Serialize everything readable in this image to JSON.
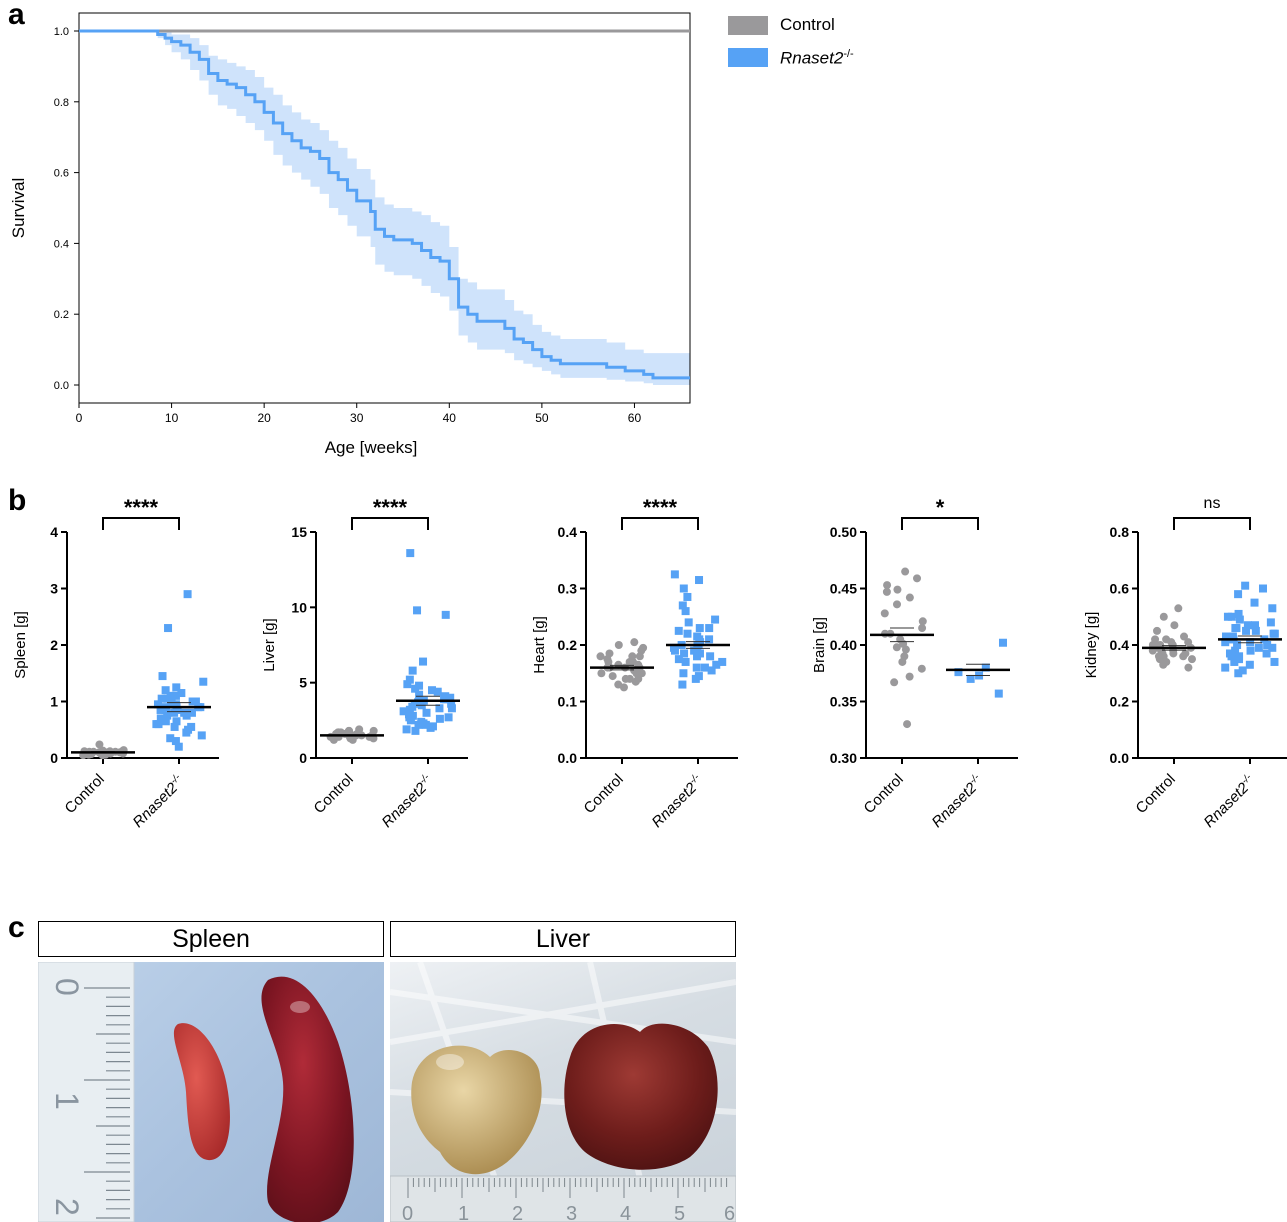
{
  "panels": {
    "a": "a",
    "b": "b",
    "c": "c"
  },
  "legend": [
    {
      "label": "Control",
      "color": "#9a999b"
    },
    {
      "label": "Rnaset2",
      "sup": "-/-",
      "color": "#56a2f5"
    }
  ],
  "colors": {
    "control": "#9a999b",
    "ko": "#56a2f5",
    "ko_band": "#cfe3fb"
  },
  "chart_data": [
    {
      "type": "line",
      "subtype": "kaplan-meier",
      "xlabel": "Age [weeks]",
      "ylabel": "Survival",
      "xlim": [
        0,
        66
      ],
      "ylim": [
        0,
        1
      ],
      "xticks": [
        "0",
        "10",
        "20",
        "30",
        "40",
        "50",
        "60"
      ],
      "yticks": [
        "0.0",
        "0.2",
        "0.4",
        "0.6",
        "0.8",
        "1.0"
      ],
      "series": [
        {
          "name": "Control",
          "x": [
            0,
            66
          ],
          "y": [
            1.0,
            1.0
          ]
        },
        {
          "name": "Rnaset2-/-",
          "x": [
            0,
            8.5,
            9.3,
            10,
            11,
            12,
            13,
            14,
            15,
            16,
            17,
            18,
            19,
            20,
            21,
            22,
            23,
            24,
            25,
            26,
            27,
            28,
            29,
            30,
            31,
            31.5,
            32,
            33,
            34,
            36,
            37,
            38,
            39,
            40,
            41,
            42,
            43,
            45,
            46,
            47,
            48,
            49,
            50,
            51,
            52,
            57,
            59,
            61,
            62,
            66
          ],
          "y": [
            1.0,
            0.99,
            0.98,
            0.97,
            0.96,
            0.94,
            0.92,
            0.88,
            0.86,
            0.85,
            0.84,
            0.82,
            0.8,
            0.77,
            0.74,
            0.71,
            0.69,
            0.67,
            0.66,
            0.64,
            0.6,
            0.58,
            0.55,
            0.52,
            0.52,
            0.49,
            0.44,
            0.42,
            0.41,
            0.4,
            0.38,
            0.36,
            0.35,
            0.3,
            0.22,
            0.2,
            0.18,
            0.18,
            0.16,
            0.13,
            0.12,
            0.1,
            0.08,
            0.07,
            0.06,
            0.05,
            0.04,
            0.03,
            0.02,
            0.02
          ],
          "lower": [
            1.0,
            0.98,
            0.96,
            0.94,
            0.92,
            0.89,
            0.86,
            0.82,
            0.79,
            0.78,
            0.76,
            0.74,
            0.72,
            0.69,
            0.65,
            0.62,
            0.6,
            0.58,
            0.56,
            0.54,
            0.5,
            0.48,
            0.45,
            0.42,
            0.42,
            0.39,
            0.34,
            0.32,
            0.31,
            0.3,
            0.28,
            0.26,
            0.25,
            0.21,
            0.14,
            0.12,
            0.1,
            0.1,
            0.09,
            0.07,
            0.06,
            0.05,
            0.04,
            0.03,
            0.02,
            0.015,
            0.01,
            0.005,
            0.0,
            0.0
          ],
          "upper": [
            1.0,
            1.0,
            1.0,
            0.99,
            0.99,
            0.98,
            0.96,
            0.93,
            0.92,
            0.91,
            0.9,
            0.89,
            0.87,
            0.84,
            0.82,
            0.79,
            0.77,
            0.75,
            0.74,
            0.72,
            0.69,
            0.67,
            0.64,
            0.61,
            0.61,
            0.58,
            0.53,
            0.51,
            0.5,
            0.49,
            0.48,
            0.46,
            0.45,
            0.39,
            0.3,
            0.29,
            0.27,
            0.27,
            0.24,
            0.21,
            0.2,
            0.17,
            0.15,
            0.14,
            0.13,
            0.12,
            0.1,
            0.09,
            0.09,
            0.09
          ]
        }
      ]
    },
    {
      "type": "scatter",
      "subtype": "dot-plot",
      "ylabel": "Spleen [g]",
      "ylim": [
        0,
        4
      ],
      "yticks": [
        "0",
        "1",
        "2",
        "3",
        "4"
      ],
      "categories": [
        "Control",
        "Rnaset2-/-"
      ],
      "significance": "****",
      "series": [
        {
          "name": "Control",
          "mean": 0.1,
          "sem": 0.01,
          "values": [
            0.05,
            0.06,
            0.07,
            0.08,
            0.08,
            0.09,
            0.09,
            0.1,
            0.1,
            0.1,
            0.11,
            0.11,
            0.12,
            0.12,
            0.13,
            0.07,
            0.08,
            0.09,
            0.1,
            0.11,
            0.06,
            0.05,
            0.12,
            0.14,
            0.09,
            0.1,
            0.08,
            0.11,
            0.24,
            0.07
          ]
        },
        {
          "name": "Rnaset2-/-",
          "mean": 0.9,
          "sem": 0.08,
          "values": [
            2.9,
            2.3,
            1.45,
            1.35,
            1.25,
            1.2,
            1.15,
            1.1,
            1.05,
            1.0,
            1.0,
            0.95,
            0.95,
            0.9,
            0.9,
            0.9,
            0.85,
            0.85,
            0.8,
            0.8,
            0.8,
            0.75,
            0.7,
            0.7,
            0.65,
            0.6,
            0.6,
            0.55,
            0.5,
            0.45,
            0.4,
            0.35,
            0.3,
            0.2,
            1.1,
            1.0,
            0.9,
            0.95,
            0.75,
            0.65,
            0.55,
            0.85,
            1.05
          ]
        }
      ]
    },
    {
      "type": "scatter",
      "subtype": "dot-plot",
      "ylabel": "Liver [g]",
      "ylim": [
        0,
        15
      ],
      "yticks": [
        "0",
        "5",
        "10",
        "15"
      ],
      "categories": [
        "Control",
        "Rnaset2-/-"
      ],
      "significance": "****",
      "series": [
        {
          "name": "Control",
          "mean": 1.5,
          "sem": 0.03,
          "values": [
            1.2,
            1.3,
            1.3,
            1.4,
            1.4,
            1.4,
            1.5,
            1.5,
            1.5,
            1.5,
            1.6,
            1.6,
            1.6,
            1.7,
            1.7,
            1.8,
            1.8,
            1.9,
            1.5,
            1.4,
            1.6,
            1.3,
            1.5,
            1.7,
            1.4,
            1.6,
            1.2,
            1.8
          ]
        },
        {
          "name": "Rnaset2-/-",
          "mean": 3.8,
          "sem": 0.3,
          "values": [
            13.6,
            9.8,
            9.5,
            6.4,
            5.8,
            5.2,
            4.8,
            4.6,
            4.4,
            4.2,
            4.1,
            4.0,
            3.9,
            3.8,
            3.7,
            3.6,
            3.5,
            3.4,
            3.3,
            3.2,
            3.1,
            3.0,
            2.9,
            2.8,
            2.7,
            2.6,
            2.5,
            2.4,
            2.3,
            2.2,
            2.1,
            2.0,
            1.9,
            1.8,
            4.5,
            3.9,
            3.3,
            2.7,
            4.9,
            2.2,
            3.6
          ]
        }
      ]
    },
    {
      "type": "scatter",
      "subtype": "dot-plot",
      "ylabel": "Heart [g]",
      "ylim": [
        0,
        0.4
      ],
      "yticks": [
        "0.0",
        "0.1",
        "0.2",
        "0.3",
        "0.4"
      ],
      "categories": [
        "Control",
        "Rnaset2-/-"
      ],
      "significance": "****",
      "series": [
        {
          "name": "Control",
          "mean": 0.16,
          "sem": 0.004,
          "values": [
            0.125,
            0.13,
            0.135,
            0.14,
            0.14,
            0.145,
            0.15,
            0.15,
            0.155,
            0.155,
            0.16,
            0.16,
            0.16,
            0.165,
            0.165,
            0.17,
            0.17,
            0.175,
            0.18,
            0.18,
            0.185,
            0.19,
            0.195,
            0.2,
            0.205,
            0.15,
            0.16,
            0.17,
            0.14,
            0.18
          ]
        },
        {
          "name": "Rnaset2-/-",
          "mean": 0.2,
          "sem": 0.006,
          "values": [
            0.325,
            0.315,
            0.3,
            0.285,
            0.27,
            0.26,
            0.245,
            0.24,
            0.23,
            0.225,
            0.22,
            0.215,
            0.21,
            0.205,
            0.2,
            0.2,
            0.195,
            0.19,
            0.19,
            0.185,
            0.18,
            0.18,
            0.175,
            0.17,
            0.165,
            0.16,
            0.155,
            0.15,
            0.145,
            0.14,
            0.13,
            0.2,
            0.21,
            0.185,
            0.195,
            0.17,
            0.23,
            0.16
          ]
        }
      ]
    },
    {
      "type": "scatter",
      "subtype": "dot-plot",
      "ylabel": "Brain [g]",
      "ylim": [
        0.3,
        0.5
      ],
      "yticks": [
        "0.30",
        "0.35",
        "0.40",
        "0.45",
        "0.50"
      ],
      "categories": [
        "Control",
        "Rnaset2-/-"
      ],
      "significance": "*",
      "series": [
        {
          "name": "Control",
          "mean": 0.409,
          "sem": 0.006,
          "values": [
            0.465,
            0.459,
            0.453,
            0.449,
            0.447,
            0.442,
            0.436,
            0.428,
            0.421,
            0.415,
            0.41,
            0.405,
            0.401,
            0.396,
            0.39,
            0.385,
            0.379,
            0.372,
            0.367,
            0.33,
            0.41,
            0.398
          ]
        },
        {
          "name": "Rnaset2-/-",
          "mean": 0.378,
          "sem": 0.005,
          "values": [
            0.402,
            0.38,
            0.376,
            0.373,
            0.37,
            0.357
          ]
        }
      ]
    },
    {
      "type": "scatter",
      "subtype": "dot-plot",
      "ylabel": "Kidney [g]",
      "ylim": [
        0,
        0.8
      ],
      "yticks": [
        "0.0",
        "0.2",
        "0.4",
        "0.6",
        "0.8"
      ],
      "categories": [
        "Control",
        "Rnaset2-/-"
      ],
      "significance": "ns",
      "series": [
        {
          "name": "Control",
          "mean": 0.39,
          "sem": 0.008,
          "values": [
            0.53,
            0.5,
            0.47,
            0.45,
            0.43,
            0.42,
            0.41,
            0.4,
            0.4,
            0.39,
            0.39,
            0.38,
            0.38,
            0.37,
            0.37,
            0.36,
            0.36,
            0.35,
            0.35,
            0.34,
            0.33,
            0.32,
            0.4,
            0.39,
            0.41,
            0.38,
            0.37,
            0.36,
            0.42,
            0.4
          ]
        },
        {
          "name": "Rnaset2-/-",
          "mean": 0.42,
          "sem": 0.012,
          "values": [
            0.61,
            0.6,
            0.58,
            0.55,
            0.53,
            0.51,
            0.5,
            0.49,
            0.48,
            0.47,
            0.46,
            0.45,
            0.44,
            0.43,
            0.42,
            0.42,
            0.41,
            0.4,
            0.4,
            0.39,
            0.38,
            0.37,
            0.37,
            0.36,
            0.35,
            0.34,
            0.33,
            0.32,
            0.31,
            0.3,
            0.45,
            0.43,
            0.41,
            0.39,
            0.47,
            0.36,
            0.44,
            0.38,
            0.5,
            0.34,
            0.42,
            0.46
          ]
        }
      ]
    }
  ],
  "photos": [
    {
      "title": "Spleen",
      "ruler_labels": [
        "0",
        "1",
        "2"
      ]
    },
    {
      "title": "Liver",
      "ruler_labels": [
        "0",
        "1",
        "2",
        "3",
        "4",
        "5",
        "6"
      ]
    }
  ]
}
